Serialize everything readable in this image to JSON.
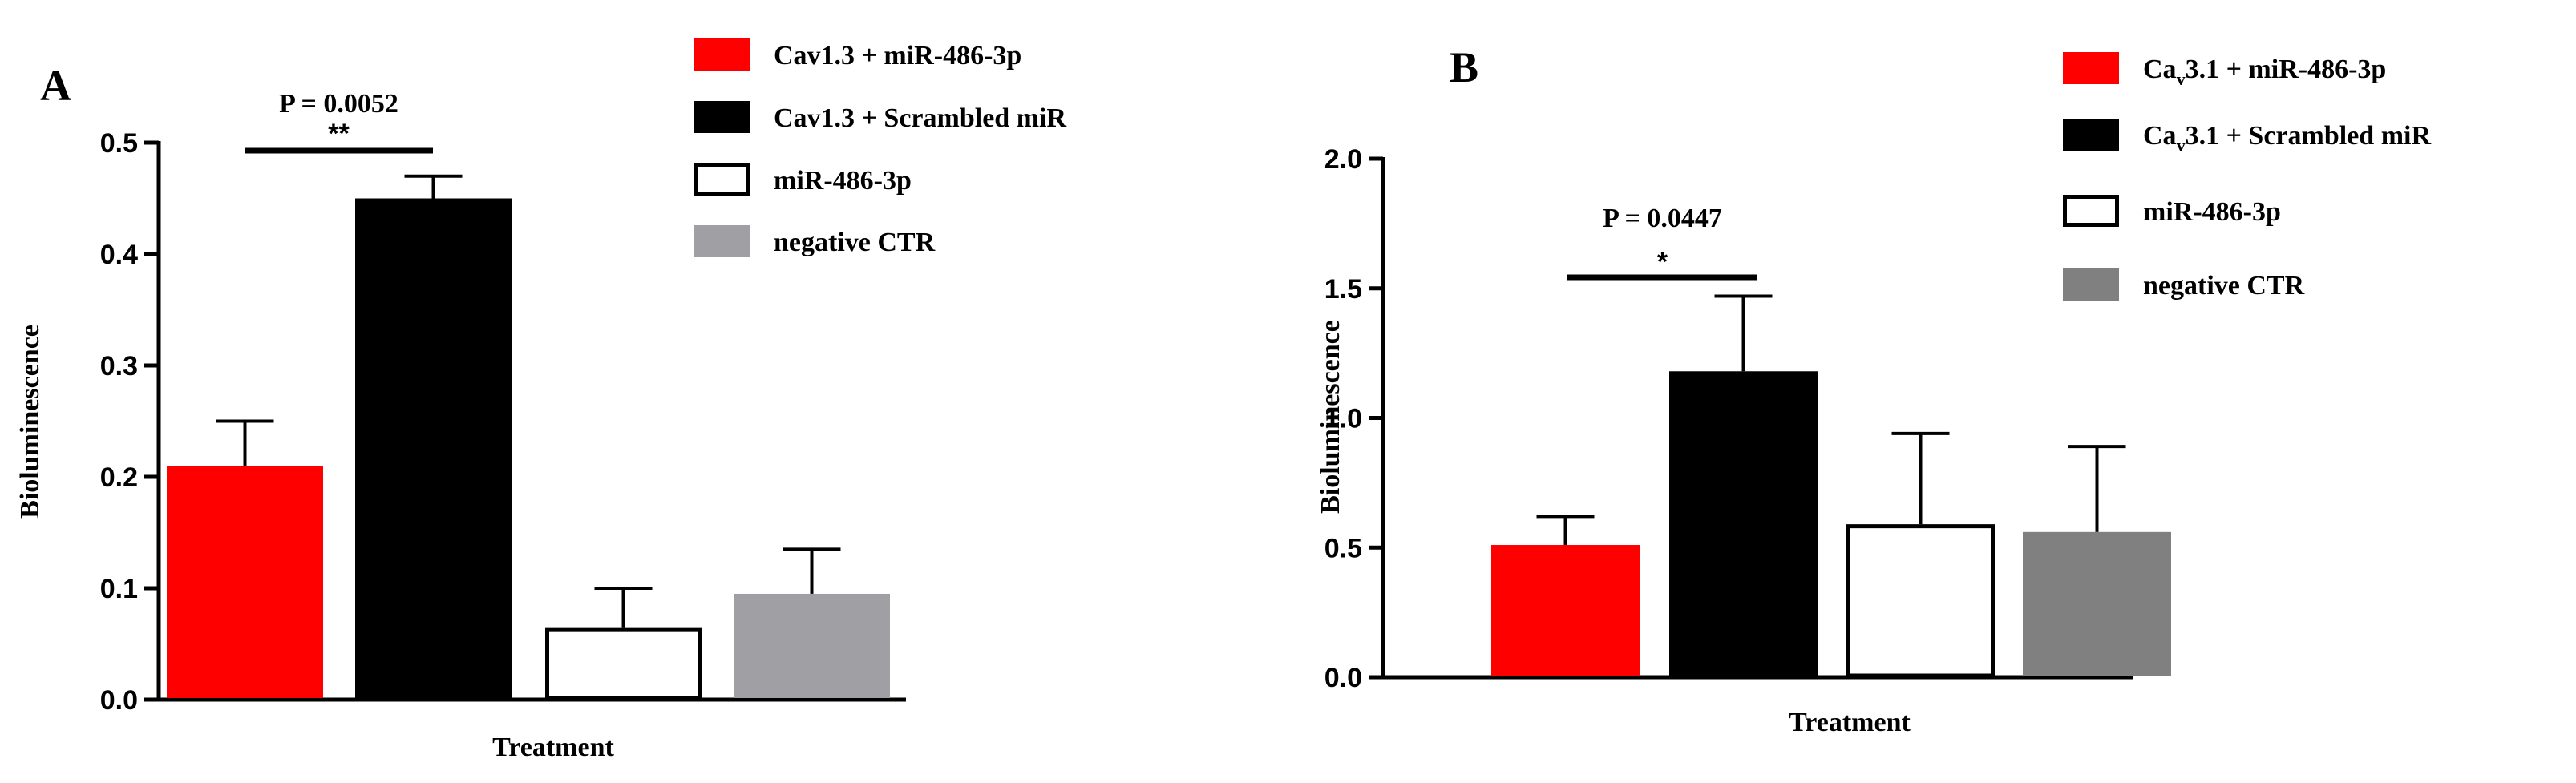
{
  "chart_data": [
    {
      "panel": "A",
      "type": "bar",
      "title": "",
      "xlabel": "Treatment",
      "ylabel": "Bioluminescence",
      "ylim": [
        0,
        0.5
      ],
      "yticks": [
        "0.0",
        "0.1",
        "0.2",
        "0.3",
        "0.4",
        "0.5"
      ],
      "ytick_values": [
        0,
        0.1,
        0.2,
        0.3,
        0.4,
        0.5
      ],
      "categories": [
        "Cav1.3 + miR-486-3p",
        "Cav1.3 + Scrambled miR",
        "miR-486-3p",
        "negative CTR"
      ],
      "values": [
        0.21,
        0.45,
        0.065,
        0.095
      ],
      "errors": [
        0.04,
        0.02,
        0.035,
        0.04
      ],
      "colors": [
        "#ff0000",
        "#000000",
        "#ffffff",
        "#a0a0a4"
      ],
      "legend": [
        {
          "label": "Cav1.3 + miR-486-3p",
          "color": "#ff0000"
        },
        {
          "label": "Cav1.3 + Scrambled miR",
          "color": "#000000"
        },
        {
          "label": "miR-486-3p",
          "color": "#ffffff"
        },
        {
          "label": "negative CTR",
          "color": "#a0a0a4"
        }
      ],
      "annotation": {
        "p_text": "P = 0.0052",
        "stars": "**",
        "from": 0,
        "to": 1
      }
    },
    {
      "panel": "B",
      "type": "bar",
      "title": "",
      "xlabel": "Treatment",
      "ylabel": "Bioluminescence",
      "ylim": [
        0,
        2.0
      ],
      "yticks": [
        "0.0",
        "0.5",
        "1.0",
        "1.5",
        "2.0"
      ],
      "ytick_values": [
        0,
        0.5,
        1.0,
        1.5,
        2.0
      ],
      "categories": [
        "Cav3.1 + miR-486-3p",
        "Cav3.1 + Scrambled miR",
        "miR-486-3p",
        "negative CTR"
      ],
      "values": [
        0.51,
        1.18,
        0.59,
        0.56
      ],
      "errors": [
        0.11,
        0.29,
        0.35,
        0.33
      ],
      "colors": [
        "#ff0000",
        "#000000",
        "#ffffff",
        "#808080"
      ],
      "legend": [
        {
          "prefix": "Ca",
          "sub": "v",
          "label": "3.1 + miR-486-3p",
          "color": "#ff0000"
        },
        {
          "prefix": "Ca",
          "sub": "v",
          "label": "3.1 + Scrambled miR",
          "color": "#000000"
        },
        {
          "prefix": "",
          "sub": "",
          "label": "miR-486-3p",
          "color": "#ffffff"
        },
        {
          "prefix": "",
          "sub": "",
          "label": "negative CTR",
          "color": "#808080"
        }
      ],
      "annotation": {
        "p_text": "P = 0.0447",
        "stars": "*",
        "from": 0,
        "to": 1
      }
    }
  ]
}
